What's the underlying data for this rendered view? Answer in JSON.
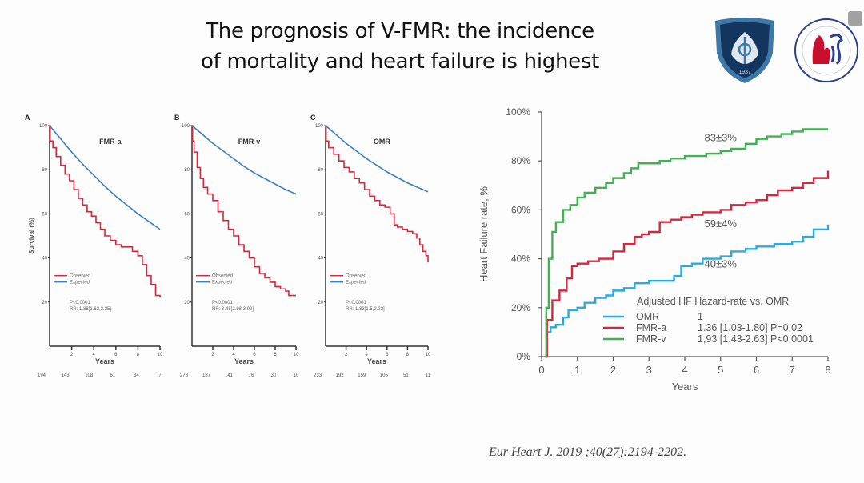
{
  "slide": {
    "title_line1": "The prognosis of V-FMR: the incidence",
    "title_line2": "of mortality and heart failure is highest",
    "logo_left": {
      "icon": "hospital-shield-logo",
      "year": "1937",
      "color": "#1d4a7a"
    },
    "logo_right": {
      "icon": "research-center-round-logo",
      "accent": "#c8102e",
      "secondary": "#2a3f8f"
    },
    "citation": "Eur Heart J. 2019 ;40(27):2194-2202."
  },
  "chart_data": [
    {
      "type": "line",
      "panel": "A",
      "subtitle": "FMR-a",
      "xlabel": "Years",
      "ylabel": "Survival (%)",
      "xlim": [
        0,
        10
      ],
      "ylim": [
        0,
        100
      ],
      "xticks": [
        "2",
        "4",
        "6",
        "8",
        "10"
      ],
      "yticks": [
        "20",
        "40",
        "60",
        "80",
        "100"
      ],
      "legend": [
        "Observed",
        "Expected"
      ],
      "stats": [
        "P<0.0001",
        "RR: 1.88[1.62,2.25]"
      ],
      "at_risk": [
        "194",
        "143",
        "108",
        "61",
        "34",
        "7"
      ],
      "series": [
        {
          "name": "Observed",
          "color": "#d7263d",
          "step": true,
          "x": [
            0,
            0.05,
            0.3,
            0.6,
            1.0,
            1.4,
            1.8,
            2.2,
            2.6,
            3.0,
            3.4,
            3.8,
            4.2,
            4.6,
            5.0,
            5.5,
            6.0,
            6.5,
            7.0,
            7.5,
            8.0,
            8.4,
            8.8,
            9.2,
            9.6,
            10.0
          ],
          "y": [
            100,
            93,
            90,
            86,
            82,
            78,
            75,
            71,
            67,
            64,
            61,
            59,
            56,
            53,
            50,
            48,
            46,
            45,
            45,
            43,
            41,
            37,
            32,
            28,
            23,
            22
          ]
        },
        {
          "name": "Expected",
          "color": "#3a7fc1",
          "step": false,
          "x": [
            0,
            1,
            2,
            3,
            4,
            5,
            6,
            7,
            8,
            9,
            10
          ],
          "y": [
            100,
            94,
            88,
            82.5,
            77.5,
            72.5,
            68,
            64,
            60,
            56.5,
            53
          ]
        }
      ]
    },
    {
      "type": "line",
      "panel": "B",
      "subtitle": "FMR-v",
      "xlabel": "Years",
      "ylabel": "",
      "xlim": [
        0,
        10
      ],
      "ylim": [
        0,
        100
      ],
      "xticks": [
        "2",
        "4",
        "6",
        "8",
        "10"
      ],
      "yticks": [
        "20",
        "40",
        "60",
        "80",
        "100"
      ],
      "legend": [
        "Observed",
        "Expected"
      ],
      "stats": [
        "P<0.0001",
        "RR: 3.45[2.98,3.99]"
      ],
      "at_risk": [
        "278",
        "187",
        "141",
        "76",
        "30",
        "10"
      ],
      "series": [
        {
          "name": "Observed",
          "color": "#d7263d",
          "step": true,
          "x": [
            0,
            0.05,
            0.2,
            0.5,
            0.8,
            1.1,
            1.5,
            2.0,
            2.5,
            3.0,
            3.5,
            4.0,
            4.5,
            5.0,
            5.5,
            6.0,
            6.5,
            7.0,
            7.5,
            8.0,
            8.5,
            9.0,
            9.3,
            10.0
          ],
          "y": [
            100,
            93,
            88,
            81,
            76,
            72,
            69,
            66,
            61,
            57,
            53,
            50,
            46,
            43,
            40,
            36,
            33,
            31,
            29,
            27,
            26,
            25,
            23,
            23
          ]
        },
        {
          "name": "Expected",
          "color": "#3a7fc1",
          "step": false,
          "x": [
            0,
            1,
            2,
            3,
            4,
            5,
            6,
            7,
            8,
            9,
            10
          ],
          "y": [
            100,
            96,
            92,
            88.5,
            85,
            81.5,
            78.5,
            76,
            73.5,
            71,
            69
          ]
        }
      ]
    },
    {
      "type": "line",
      "panel": "C",
      "subtitle": "OMR",
      "xlabel": "Years",
      "ylabel": "",
      "xlim": [
        0,
        10
      ],
      "ylim": [
        0,
        100
      ],
      "xticks": [
        "2",
        "4",
        "6",
        "8",
        "10"
      ],
      "yticks": [
        "20",
        "40",
        "60",
        "80",
        "100"
      ],
      "legend": [
        "Observed",
        "Expected"
      ],
      "stats": [
        "P<0.0001",
        "RR: 1.83[1.5,2.22]"
      ],
      "at_risk": [
        "233",
        "192",
        "159",
        "105",
        "51",
        "11"
      ],
      "series": [
        {
          "name": "Observed",
          "color": "#d7263d",
          "step": true,
          "x": [
            0,
            0.05,
            0.3,
            0.8,
            1.3,
            1.8,
            2.3,
            2.8,
            3.3,
            3.8,
            4.3,
            4.8,
            5.3,
            5.8,
            6.3,
            6.7,
            7.0,
            7.5,
            8.0,
            8.5,
            8.9,
            9.2,
            9.5,
            9.8,
            10.0
          ],
          "y": [
            100,
            93,
            90,
            87,
            84,
            81,
            79,
            76,
            74,
            71,
            68,
            66,
            64,
            63,
            60,
            55,
            54,
            53,
            52,
            51,
            49,
            46,
            43,
            41,
            38
          ]
        },
        {
          "name": "Expected",
          "color": "#3a7fc1",
          "step": false,
          "x": [
            0,
            1,
            2,
            3,
            4,
            5,
            6,
            7,
            8,
            9,
            10
          ],
          "y": [
            100,
            96,
            92,
            88.5,
            85,
            82,
            79,
            76.5,
            74,
            72,
            70
          ]
        }
      ]
    },
    {
      "type": "line",
      "panel": "",
      "subtitle": "",
      "xlabel": "Years",
      "ylabel": "Heart Failure rate, %",
      "xlim": [
        0,
        8
      ],
      "ylim": [
        0,
        100
      ],
      "xticks": [
        "0",
        "1",
        "2",
        "3",
        "4",
        "5",
        "6",
        "7",
        "8"
      ],
      "yticks": [
        "0%",
        "20%",
        "40%",
        "60%",
        "80%",
        "100%"
      ],
      "legend_title": "Adjusted HF Hazard-rate vs. OMR",
      "legend": [
        {
          "name": "OMR",
          "value": "1"
        },
        {
          "name": "FMR-a",
          "value": "1.36 [1.03-1.80] P=0.02"
        },
        {
          "name": "FMR-v",
          "value": "1,93 [1.43-2.63] P<0.0001"
        }
      ],
      "annotations": [
        "83±3%",
        "59±4%",
        "40±3%"
      ],
      "series": [
        {
          "name": "OMR",
          "color": "#29abe2",
          "step": true,
          "x": [
            0.1,
            0.15,
            0.25,
            0.4,
            0.6,
            0.75,
            1.0,
            1.2,
            1.5,
            1.8,
            2.0,
            2.3,
            2.6,
            3.0,
            3.3,
            3.5,
            3.7,
            3.9,
            4.2,
            4.5,
            5.0,
            5.3,
            5.7,
            6.0,
            6.5,
            7.0,
            7.3,
            7.6,
            8.0
          ],
          "y": [
            0,
            10,
            12,
            13,
            16,
            19,
            20,
            22,
            24,
            25,
            27,
            28,
            30,
            31,
            31,
            31,
            33,
            37,
            38,
            40,
            41,
            43,
            44,
            45,
            46,
            47,
            49,
            52,
            54
          ]
        },
        {
          "name": "FMR-a",
          "color": "#d7263d",
          "step": true,
          "x": [
            0.1,
            0.15,
            0.3,
            0.5,
            0.7,
            0.85,
            1.0,
            1.3,
            1.6,
            2.0,
            2.3,
            2.6,
            2.8,
            3.0,
            3.3,
            3.6,
            3.9,
            4.2,
            4.5,
            5.0,
            5.3,
            5.7,
            6.0,
            6.3,
            6.6,
            7.0,
            7.3,
            7.6,
            8.0
          ],
          "y": [
            0,
            15,
            23,
            27,
            32,
            37,
            38,
            39,
            40,
            43,
            46,
            49,
            50,
            51,
            55,
            56,
            57,
            58,
            59,
            60,
            62,
            63,
            64,
            66,
            68,
            69,
            71,
            73,
            76
          ]
        },
        {
          "name": "FMR-v",
          "color": "#3cb550",
          "step": true,
          "x": [
            0.1,
            0.13,
            0.2,
            0.3,
            0.4,
            0.6,
            0.8,
            1.0,
            1.2,
            1.5,
            1.8,
            2.0,
            2.3,
            2.5,
            2.7,
            3.0,
            3.3,
            3.6,
            4.0,
            4.3,
            4.6,
            5.0,
            5.3,
            5.7,
            6.0,
            6.3,
            6.7,
            7.0,
            7.3,
            8.0
          ],
          "y": [
            0,
            20,
            40,
            51,
            55,
            60,
            62,
            65,
            67,
            69,
            71,
            73,
            75,
            77,
            79,
            79,
            80,
            81,
            82,
            82,
            83,
            84,
            85,
            87,
            89,
            90,
            91,
            92,
            93,
            93
          ]
        }
      ]
    }
  ]
}
